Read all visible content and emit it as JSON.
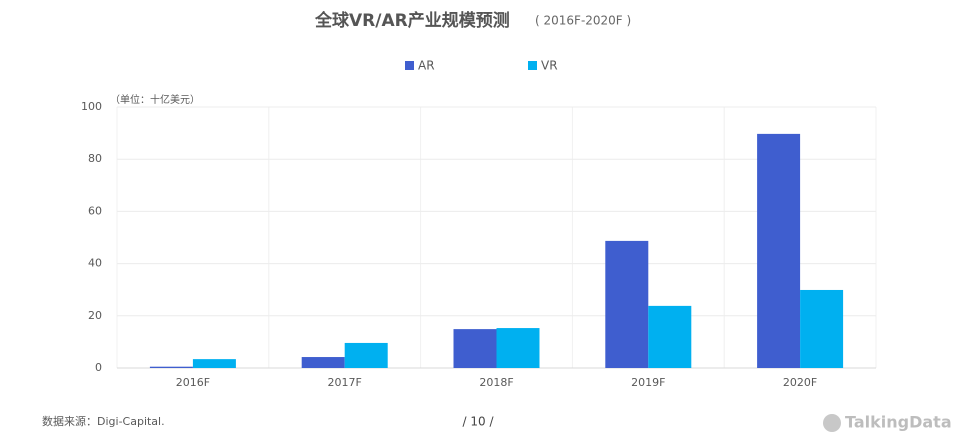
{
  "chart_data": {
    "type": "bar",
    "title": "全球VR/AR产业规模预测",
    "subtitle": "( 2016F-2020F )",
    "unit_label": "（单位：十亿美元）",
    "categories": [
      "2016F",
      "2017F",
      "2018F",
      "2019F",
      "2020F"
    ],
    "series": [
      {
        "name": "AR",
        "color": "#3f5ecf",
        "values": [
          0.5,
          4.2,
          14.9,
          48.7,
          89.7
        ]
      },
      {
        "name": "VR",
        "color": "#00b0f0",
        "values": [
          3.4,
          9.6,
          15.3,
          23.8,
          29.9
        ]
      }
    ],
    "ylim": [
      0,
      100
    ],
    "yticks": [
      0,
      20,
      40,
      60,
      80,
      100
    ],
    "grid": true
  },
  "footer": {
    "source": "数据来源：Digi-Capital.",
    "page": "/  10  /",
    "logo": "TalkingData"
  }
}
